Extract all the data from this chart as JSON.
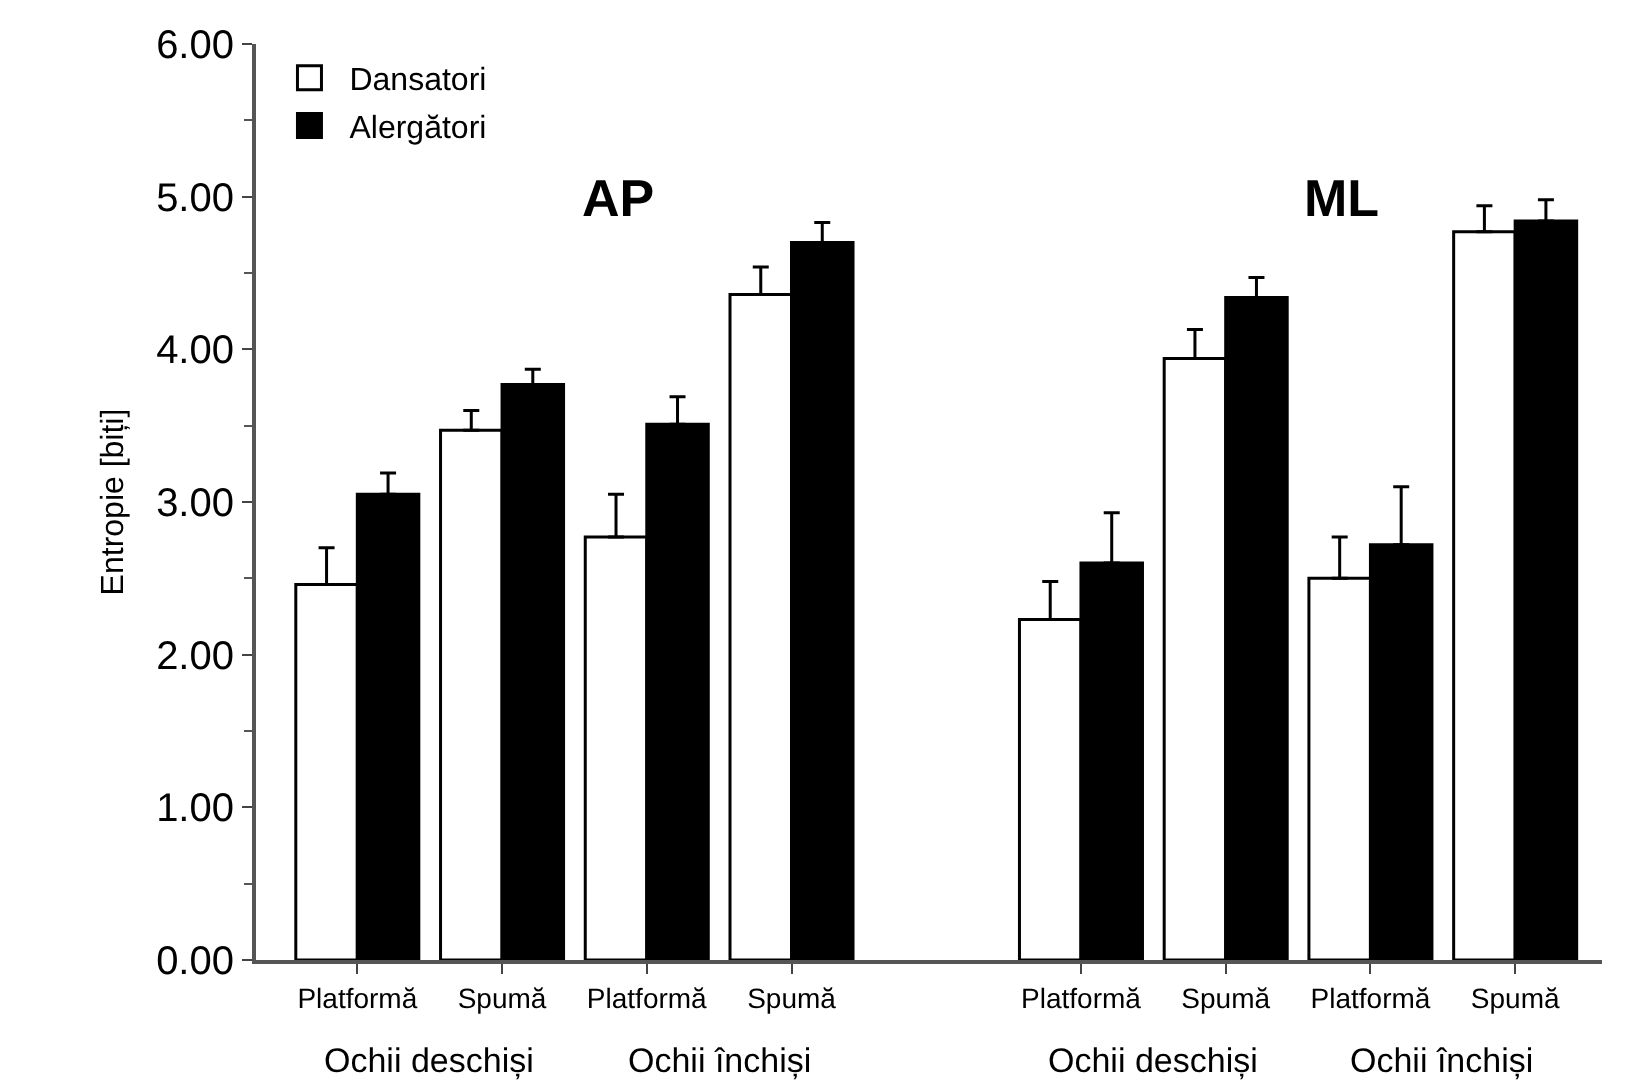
{
  "chart_data": {
    "type": "bar",
    "ylabel": "Entropie [biți]",
    "categories": [
      "Platformă",
      "Spumă",
      "Platformă",
      "Spumă",
      "Platformă",
      "Spumă",
      "Platformă",
      "Spumă"
    ],
    "series": [
      {
        "name": "Dansatori",
        "color": "#ffffff",
        "values": [
          2.46,
          3.47,
          2.77,
          4.36,
          2.23,
          3.94,
          2.5,
          4.77
        ],
        "errors": [
          [
            2.46,
            2.7
          ],
          [
            3.47,
            3.6
          ],
          [
            2.77,
            3.05
          ],
          [
            4.36,
            4.54
          ],
          [
            2.23,
            2.48
          ],
          [
            3.94,
            4.13
          ],
          [
            2.5,
            2.77
          ],
          [
            4.77,
            4.94
          ]
        ]
      },
      {
        "name": "Alergători",
        "color": "#000000",
        "values": [
          3.05,
          3.77,
          3.51,
          4.7,
          2.6,
          4.34,
          2.72,
          4.84
        ],
        "errors": [
          [
            3.05,
            3.19
          ],
          [
            3.77,
            3.87
          ],
          [
            3.51,
            3.69
          ],
          [
            4.7,
            4.83
          ],
          [
            2.6,
            2.93
          ],
          [
            4.34,
            4.47
          ],
          [
            2.72,
            3.1
          ],
          [
            4.84,
            4.98
          ]
        ]
      }
    ],
    "annotations": [
      "AP",
      "ML",
      "Ochii deschiși",
      "Ochii închiși",
      "Ochii deschiși",
      "Ochii închiși"
    ],
    "ylim": [
      0,
      6
    ],
    "yticks": [
      {
        "value": 0,
        "label": "0.00"
      },
      {
        "value": 0.5,
        "label": null
      },
      {
        "value": 1,
        "label": "1.00"
      },
      {
        "value": 1.5,
        "label": null
      },
      {
        "value": 2,
        "label": "2.00"
      },
      {
        "value": 2.5,
        "label": null
      },
      {
        "value": 3,
        "label": "3.00"
      },
      {
        "value": 3.5,
        "label": null
      },
      {
        "value": 4,
        "label": "4.00"
      },
      {
        "value": 4.5,
        "label": null
      },
      {
        "value": 5,
        "label": "5.00"
      },
      {
        "value": 5.5,
        "label": null
      },
      {
        "value": 6,
        "label": "6.00"
      }
    ],
    "legend": "top left"
  }
}
